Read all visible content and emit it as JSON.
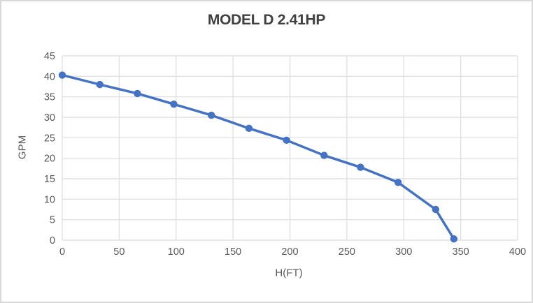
{
  "colors": {
    "line": "#4472C4",
    "marker": "#4472C4",
    "grid": "#e0e0e0",
    "tick_text": "#595959",
    "axis_title_text": "#595959",
    "title_text": "#404040",
    "background": "#ffffff",
    "frame_border": "#d9d9d9"
  },
  "chart_data": {
    "type": "line",
    "title": "MODEL D 2.41HP",
    "xlabel": "H(FT)",
    "ylabel": "GPM",
    "xlim": [
      0,
      400
    ],
    "ylim": [
      0,
      45
    ],
    "x_ticks": [
      0,
      50,
      100,
      150,
      200,
      250,
      300,
      350,
      400
    ],
    "y_ticks": [
      0,
      5,
      10,
      15,
      20,
      25,
      30,
      35,
      40,
      45
    ],
    "grid": true,
    "legend": false,
    "series": [
      {
        "name": "GPM vs H(FT)",
        "marker": "circle",
        "x": [
          0,
          33,
          66,
          98,
          131,
          164,
          197,
          230,
          262,
          295,
          328,
          344
        ],
        "y": [
          40.3,
          38.0,
          35.8,
          33.2,
          30.5,
          27.3,
          24.4,
          20.7,
          17.8,
          14.1,
          7.5,
          0.3
        ]
      }
    ]
  }
}
